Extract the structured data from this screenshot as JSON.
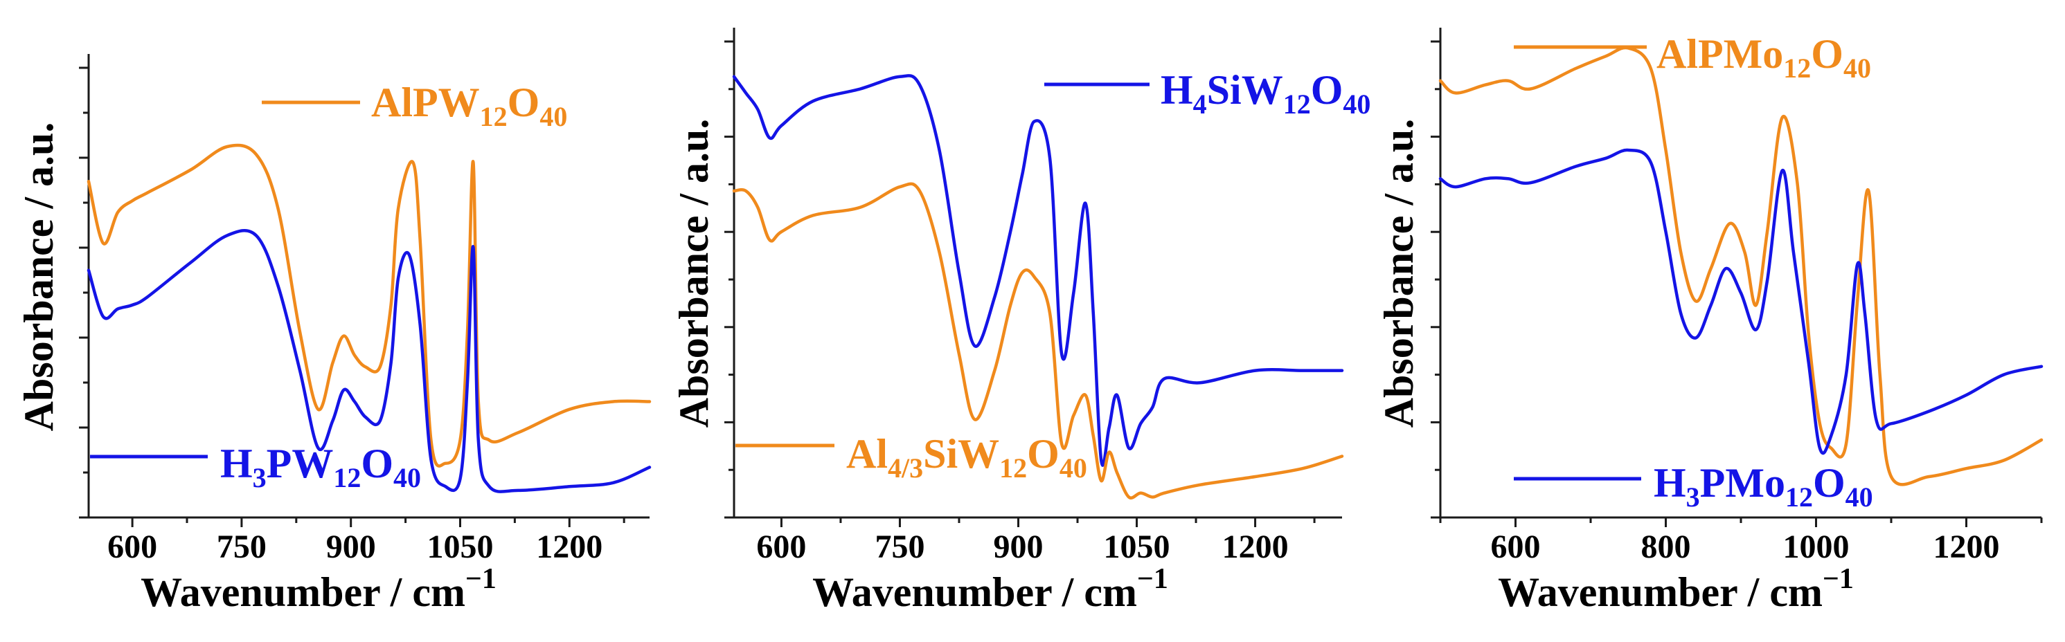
{
  "colors": {
    "orange": "#f08a1c",
    "blue": "#1414e6",
    "axis": "#1a1a1a"
  },
  "chart_data": [
    {
      "type": "line",
      "title": "",
      "xlabel": "Wavenumber / cm",
      "xlabel_sup": "−1",
      "ylabel": "Absorbance / a.u.",
      "xlim": [
        540,
        1310
      ],
      "ylim": [
        -0.1,
        1.1
      ],
      "xticks": [
        600,
        750,
        900,
        1050,
        1200
      ],
      "xtick_labels": [
        "600",
        "750",
        "900",
        "1050",
        "1200"
      ],
      "series": [
        {
          "name": "AlPW12O40",
          "label_parts": [
            [
              "AlPW",
              ""
            ],
            [
              "12",
              "sub"
            ],
            [
              "O",
              ""
            ],
            [
              "40",
              "sub"
            ]
          ],
          "color": "#f08a1c",
          "legend_position": "top-center",
          "x": [
            540,
            560,
            580,
            600,
            620,
            680,
            730,
            770,
            800,
            830,
            855,
            875,
            890,
            905,
            920,
            940,
            955,
            965,
            985,
            995,
            1010,
            1030,
            1050,
            1060,
            1068,
            1075,
            1090,
            1130,
            1200,
            1260,
            1310
          ],
          "y": [
            0.77,
            0.61,
            0.69,
            0.72,
            0.74,
            0.8,
            0.86,
            0.84,
            0.7,
            0.38,
            0.18,
            0.3,
            0.37,
            0.32,
            0.29,
            0.29,
            0.45,
            0.7,
            0.82,
            0.62,
            0.1,
            0.04,
            0.1,
            0.38,
            0.82,
            0.2,
            0.1,
            0.12,
            0.18,
            0.2,
            0.2
          ]
        },
        {
          "name": "H3PW12O40",
          "label_parts": [
            [
              "H",
              ""
            ],
            [
              "3",
              "sub"
            ],
            [
              "PW",
              ""
            ],
            [
              "12",
              "sub"
            ],
            [
              "O",
              ""
            ],
            [
              "40",
              "sub"
            ]
          ],
          "color": "#1414e6",
          "legend_position": "bottom-left",
          "x": [
            540,
            560,
            580,
            600,
            620,
            680,
            730,
            770,
            800,
            830,
            855,
            875,
            890,
            905,
            920,
            940,
            955,
            965,
            980,
            995,
            1010,
            1030,
            1050,
            1060,
            1068,
            1075,
            1090,
            1130,
            1200,
            1260,
            1310
          ],
          "y": [
            0.54,
            0.42,
            0.44,
            0.45,
            0.47,
            0.56,
            0.63,
            0.63,
            0.5,
            0.28,
            0.08,
            0.15,
            0.23,
            0.2,
            0.16,
            0.15,
            0.3,
            0.52,
            0.58,
            0.4,
            0.05,
            -0.02,
            0.0,
            0.25,
            0.6,
            0.1,
            -0.02,
            -0.03,
            -0.02,
            -0.01,
            0.03
          ]
        }
      ]
    },
    {
      "type": "line",
      "title": "",
      "xlabel": "Wavenumber / cm",
      "xlabel_sup": "−1",
      "ylabel": "Absorbance / a.u.",
      "xlim": [
        540,
        1310
      ],
      "ylim": [
        -0.1,
        1.1
      ],
      "xticks": [
        600,
        750,
        900,
        1050,
        1200
      ],
      "xtick_labels": [
        "600",
        "750",
        "900",
        "1050",
        "1200"
      ],
      "series": [
        {
          "name": "H4SiW12O40",
          "label_parts": [
            [
              "H",
              ""
            ],
            [
              "4",
              "sub"
            ],
            [
              "SiW",
              ""
            ],
            [
              "12",
              "sub"
            ],
            [
              "O",
              ""
            ],
            [
              "40",
              "sub"
            ]
          ],
          "color": "#1414e6",
          "legend_position": "top-right",
          "x": [
            540,
            555,
            570,
            585,
            600,
            640,
            700,
            750,
            775,
            800,
            825,
            845,
            870,
            890,
            905,
            920,
            940,
            955,
            970,
            985,
            995,
            1005,
            1015,
            1025,
            1040,
            1055,
            1070,
            1085,
            1130,
            1200,
            1260,
            1310
          ],
          "y": [
            0.98,
            0.94,
            0.9,
            0.83,
            0.86,
            0.92,
            0.95,
            0.98,
            0.96,
            0.8,
            0.5,
            0.32,
            0.44,
            0.6,
            0.74,
            0.87,
            0.78,
            0.3,
            0.45,
            0.67,
            0.4,
            0.04,
            0.12,
            0.2,
            0.07,
            0.13,
            0.17,
            0.24,
            0.23,
            0.26,
            0.26,
            0.26
          ]
        },
        {
          "name": "Al4/3SiW12O40",
          "label_parts": [
            [
              "Al",
              ""
            ],
            [
              "4/3",
              "sub"
            ],
            [
              "SiW",
              ""
            ],
            [
              "12",
              "sub"
            ],
            [
              "O",
              ""
            ],
            [
              "40",
              "sub"
            ]
          ],
          "color": "#f08a1c",
          "legend_position": "bottom-left",
          "x": [
            540,
            555,
            570,
            585,
            600,
            640,
            700,
            750,
            775,
            800,
            825,
            845,
            870,
            890,
            905,
            920,
            940,
            955,
            970,
            985,
            995,
            1005,
            1015,
            1025,
            1040,
            1055,
            1070,
            1085,
            1130,
            1200,
            1260,
            1310
          ],
          "y": [
            0.7,
            0.7,
            0.66,
            0.58,
            0.6,
            0.64,
            0.66,
            0.71,
            0.7,
            0.55,
            0.3,
            0.14,
            0.26,
            0.42,
            0.5,
            0.49,
            0.4,
            0.08,
            0.15,
            0.2,
            0.1,
            -0.01,
            0.06,
            0.01,
            -0.05,
            -0.04,
            -0.05,
            -0.04,
            -0.02,
            0.0,
            0.02,
            0.05
          ]
        }
      ]
    },
    {
      "type": "line",
      "title": "",
      "xlabel": "Wavenumber / cm",
      "xlabel_sup": "−1",
      "ylabel": "Absorbance / a.u.",
      "xlim": [
        500,
        1300
      ],
      "ylim": [
        -0.1,
        1.1
      ],
      "xticks": [
        600,
        800,
        1000,
        1200
      ],
      "xtick_labels": [
        "600",
        "800",
        "1000",
        "1200"
      ],
      "series": [
        {
          "name": "AlPMo12O40",
          "label_parts": [
            [
              "AlPMo",
              ""
            ],
            [
              "12",
              "sub"
            ],
            [
              "O",
              ""
            ],
            [
              "40",
              "sub"
            ]
          ],
          "color": "#f08a1c",
          "legend_position": "top-left",
          "x": [
            500,
            520,
            560,
            590,
            620,
            680,
            720,
            750,
            780,
            800,
            820,
            840,
            860,
            885,
            905,
            920,
            935,
            955,
            975,
            990,
            1005,
            1020,
            1040,
            1055,
            1070,
            1085,
            1100,
            1150,
            1200,
            1250,
            1300
          ],
          "y": [
            0.97,
            0.94,
            0.96,
            0.97,
            0.95,
            1.0,
            1.03,
            1.05,
            1.0,
            0.8,
            0.55,
            0.43,
            0.51,
            0.62,
            0.55,
            0.42,
            0.6,
            0.88,
            0.72,
            0.35,
            0.13,
            0.07,
            0.08,
            0.43,
            0.7,
            0.25,
            0.0,
            0.0,
            0.02,
            0.04,
            0.09
          ]
        },
        {
          "name": "H3PMo12O40",
          "label_parts": [
            [
              "H",
              ""
            ],
            [
              "3",
              "sub"
            ],
            [
              "PMo",
              ""
            ],
            [
              "12",
              "sub"
            ],
            [
              "O",
              ""
            ],
            [
              "40",
              "sub"
            ]
          ],
          "color": "#1414e6",
          "legend_position": "bottom-right",
          "x": [
            500,
            520,
            560,
            590,
            620,
            680,
            720,
            750,
            780,
            800,
            820,
            840,
            860,
            880,
            900,
            920,
            935,
            955,
            970,
            990,
            1005,
            1020,
            1040,
            1055,
            1065,
            1080,
            1100,
            1150,
            1200,
            1250,
            1300
          ],
          "y": [
            0.73,
            0.71,
            0.73,
            0.73,
            0.72,
            0.76,
            0.78,
            0.8,
            0.77,
            0.6,
            0.4,
            0.34,
            0.42,
            0.51,
            0.45,
            0.36,
            0.48,
            0.75,
            0.55,
            0.28,
            0.07,
            0.1,
            0.25,
            0.52,
            0.4,
            0.14,
            0.13,
            0.16,
            0.2,
            0.25,
            0.27
          ]
        }
      ]
    }
  ]
}
